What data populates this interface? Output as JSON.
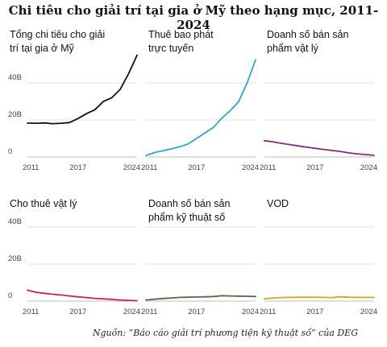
{
  "title": "Chi tiêu cho giải trí tại gia ở Mỹ theo hạng mục, 2011-2024",
  "source": "Nguồn: “Báo cáo giải trí phương tiện kỹ thuật số” của DEG",
  "chart_data": {
    "type": "line",
    "title": "Chi tiêu cho giải trí tại gia ở Mỹ theo hạng mục, 2011-2024",
    "y_ticks": [
      "0",
      "20B",
      "40B"
    ],
    "x_ticks": [
      "2011",
      "2017",
      "2024"
    ],
    "ylim": [
      0,
      58
    ],
    "xlim": [
      2011,
      2024
    ],
    "grid": true,
    "legend": "none",
    "x": [
      2011,
      2012,
      2013,
      2014,
      2015,
      2016,
      2017,
      2018,
      2019,
      2020,
      2021,
      2022,
      2023,
      2024
    ],
    "panels": [
      {
        "name_lines": [
          "Tổng chi tiêu cho giải",
          "trí tại gia ở Mỹ"
        ],
        "color": "#111111",
        "values": [
          18.3,
          18.2,
          18.4,
          18.0,
          18.2,
          18.6,
          20.8,
          23.4,
          25.5,
          30.0,
          32.0,
          36.5,
          45.0,
          55.0
        ]
      },
      {
        "name_lines": [
          "Thuê bao phát",
          "trực tuyến"
        ],
        "color": "#2aa8c8",
        "values": [
          0.8,
          2.4,
          3.4,
          4.4,
          5.5,
          7.0,
          10.0,
          13.0,
          16.0,
          21.0,
          25.0,
          30.0,
          40.0,
          52.5
        ]
      },
      {
        "name_lines": [
          "Doanh số bán sản",
          "phẩm vật lý"
        ],
        "color": "#8a2a78",
        "values": [
          8.8,
          8.2,
          7.4,
          6.7,
          6.0,
          5.3,
          4.7,
          4.1,
          3.5,
          3.0,
          2.2,
          1.7,
          1.3,
          0.9
        ]
      },
      {
        "name_lines": [
          "Cho thuê vật lý"
        ],
        "color": "#d81a5a",
        "values": [
          5.9,
          4.8,
          4.2,
          3.7,
          3.3,
          2.8,
          2.3,
          1.9,
          1.5,
          1.2,
          0.9,
          0.6,
          0.4,
          0.2
        ]
      },
      {
        "name_lines": [
          "Doanh số bán sản",
          "phẩm kỹ thuật số"
        ],
        "color": "#4e6e3e",
        "values": [
          0.6,
          1.0,
          1.4,
          1.7,
          2.0,
          2.1,
          2.2,
          2.3,
          2.5,
          2.9,
          2.8,
          2.7,
          2.6,
          2.5
        ]
      },
      {
        "name_lines": [
          "VOD"
        ],
        "color": "#e0a020",
        "values": [
          1.2,
          1.7,
          1.9,
          2.0,
          2.1,
          2.1,
          2.1,
          2.0,
          1.9,
          2.3,
          2.1,
          2.0,
          2.0,
          2.0
        ]
      }
    ]
  }
}
